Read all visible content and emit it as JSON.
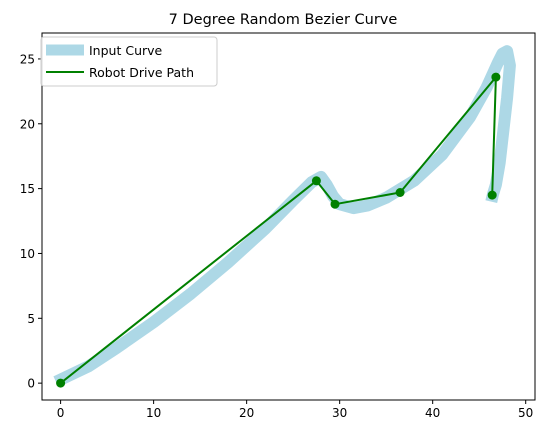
{
  "chart_data": {
    "type": "line",
    "title": "7 Degree Random Bezier Curve",
    "xlabel": "",
    "ylabel": "",
    "xlim": [
      -2,
      51
    ],
    "ylim": [
      -1.3,
      27
    ],
    "x_ticks": [
      0,
      10,
      20,
      30,
      40,
      50
    ],
    "y_ticks": [
      0,
      5,
      10,
      15,
      20,
      25
    ],
    "x_tick_labels": [
      "0",
      "10",
      "20",
      "30",
      "40",
      "50"
    ],
    "y_tick_labels": [
      "0",
      "5",
      "10",
      "15",
      "20",
      "25"
    ],
    "grid": false,
    "legend_position": "upper-left",
    "series": [
      {
        "name": "Input Curve",
        "color": "#add8e6",
        "style": "thick-line",
        "x": [
          -0.5,
          3,
          6,
          10,
          14,
          18,
          22,
          25,
          27,
          28,
          28.6,
          29.3,
          30,
          31.5,
          33,
          35,
          38,
          41,
          44,
          45.8,
          46.5,
          47,
          47.5,
          48,
          48.3
        ],
        "y": [
          0.1,
          1.3,
          2.7,
          4.7,
          6.9,
          9.3,
          11.9,
          14.1,
          15.5,
          15.9,
          15.3,
          14.4,
          13.8,
          13.5,
          13.7,
          14.3,
          15.6,
          17.6,
          20.5,
          22.8,
          23.9,
          24.7,
          25.4,
          25.6,
          24.5
        ]
      },
      {
        "name": "Robot Drive Path",
        "color": "#008000",
        "style": "line-with-markers",
        "x": [
          0,
          27.5,
          29.5,
          36.5,
          46.8,
          46.4
        ],
        "y": [
          0,
          15.6,
          13.8,
          14.7,
          23.6,
          14.5
        ]
      }
    ],
    "tail": {
      "x": [
        48.3,
        48.0,
        47.6,
        47.2,
        46.8,
        46.5,
        46.3
      ],
      "y": [
        24.5,
        22.0,
        19.5,
        17.0,
        15.3,
        14.6,
        14.0
      ]
    }
  }
}
